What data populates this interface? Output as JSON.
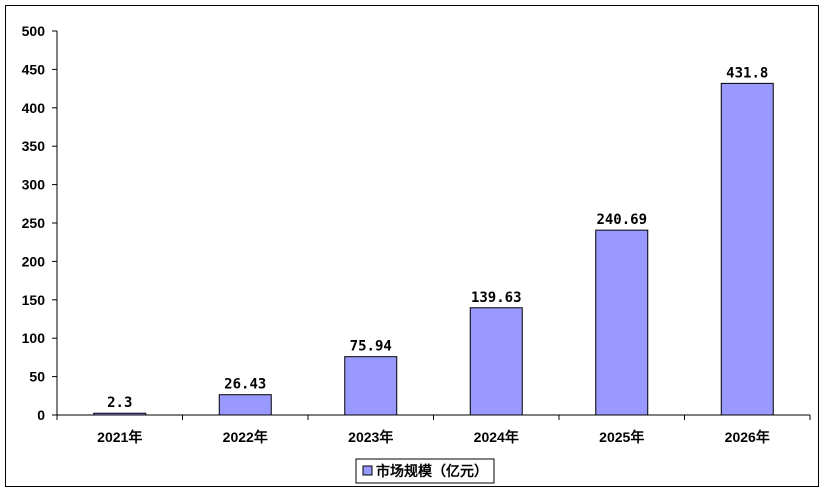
{
  "chart_data": {
    "type": "bar",
    "categories": [
      "2021年",
      "2022年",
      "2023年",
      "2024年",
      "2025年",
      "2026年"
    ],
    "series": [
      {
        "name": "市场规模（亿元）",
        "values": [
          2.3,
          26.43,
          75.94,
          139.63,
          240.69,
          431.8
        ],
        "data_labels": [
          "2.3",
          "26.43",
          "75.94",
          "139.63",
          "240.69",
          "431.8"
        ]
      }
    ],
    "ylim": [
      0,
      500
    ],
    "yticks": [
      0,
      50,
      100,
      150,
      200,
      250,
      300,
      350,
      400,
      450,
      500
    ],
    "grid": false,
    "legend_position": "bottom",
    "bar_color": "#9999ff",
    "bar_border_color": "#000000"
  }
}
